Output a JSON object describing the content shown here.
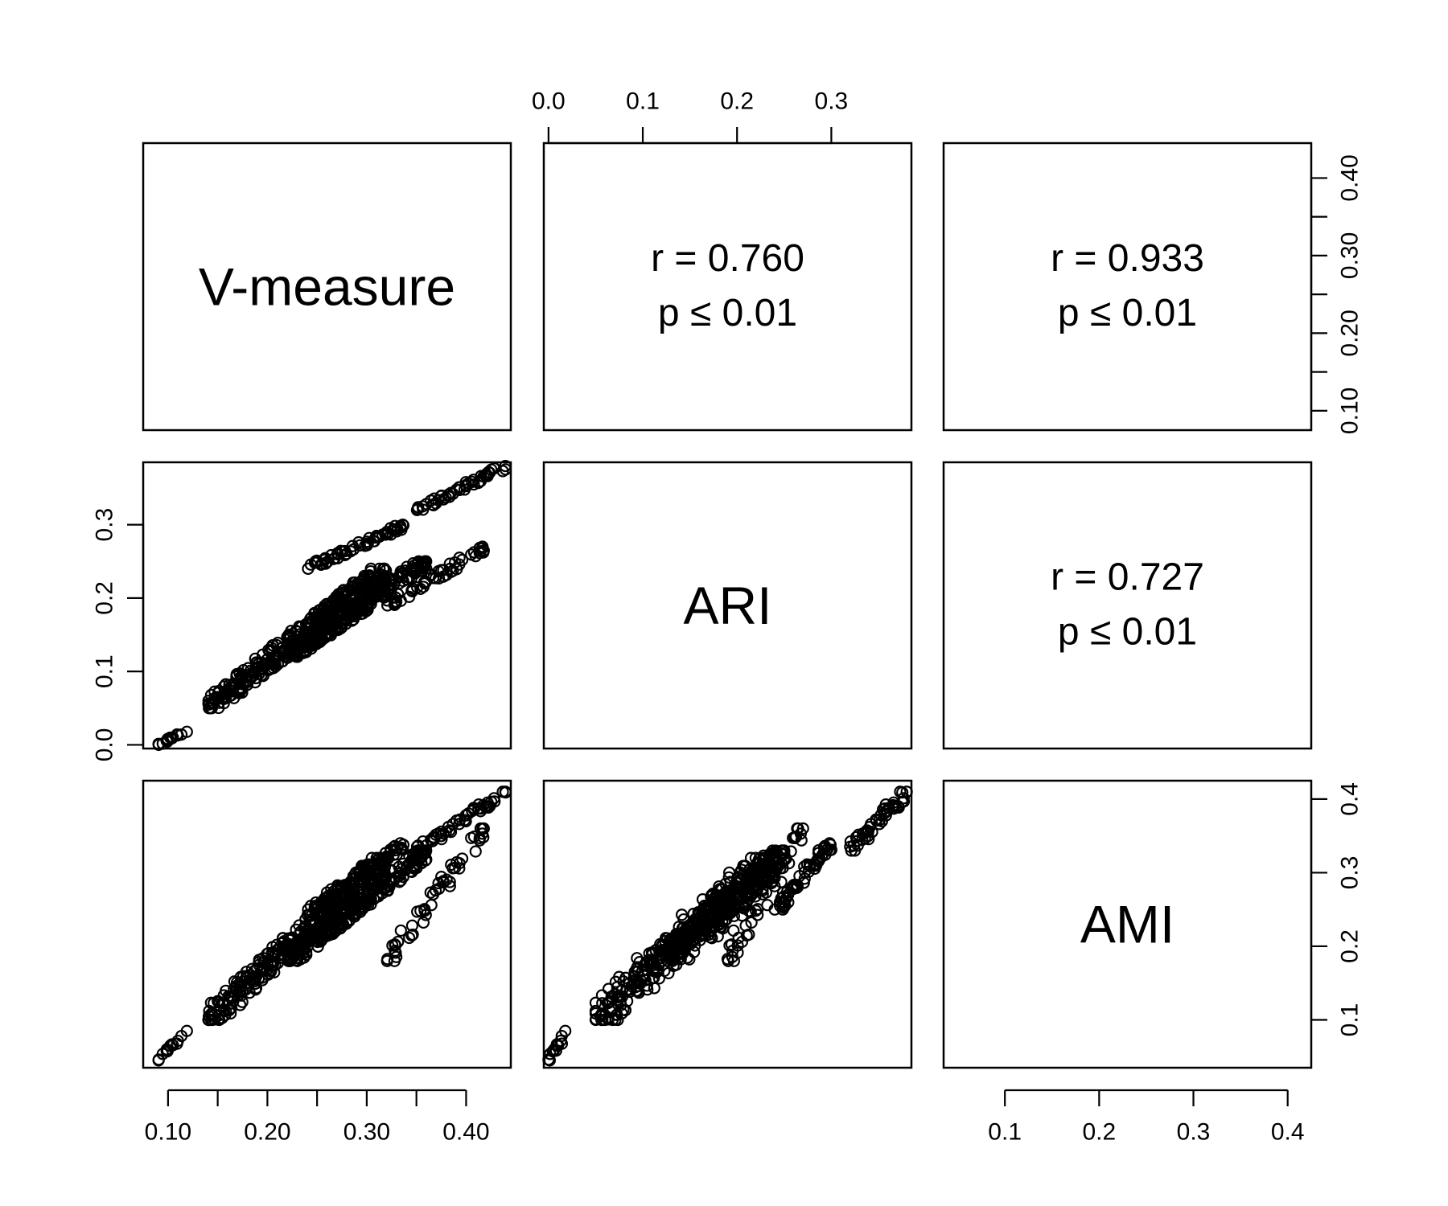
{
  "chart_data": {
    "type": "scatter-matrix",
    "variables": [
      "V-measure",
      "ARI",
      "AMI"
    ],
    "ranges": {
      "V-measure": [
        0.075,
        0.445
      ],
      "ARI": [
        -0.005,
        0.385
      ],
      "AMI": [
        0.035,
        0.425
      ]
    },
    "axes": {
      "bottom_col1": {
        "ticks": [
          0.1,
          0.15,
          0.2,
          0.25,
          0.3,
          0.35,
          0.4
        ],
        "labels": [
          "0.10",
          "0.20",
          "0.30",
          "0.40"
        ],
        "label_values": [
          0.1,
          0.2,
          0.3,
          0.4
        ]
      },
      "top_col2": {
        "ticks": [
          0.0,
          0.1,
          0.2,
          0.3
        ],
        "labels": [
          "0.0",
          "0.1",
          "0.2",
          "0.3"
        ]
      },
      "left_row2": {
        "ticks": [
          0.0,
          0.1,
          0.2,
          0.3
        ],
        "labels": [
          "0.0",
          "0.1",
          "0.2",
          "0.3"
        ]
      },
      "right_row1": {
        "ticks": [
          0.1,
          0.15,
          0.2,
          0.25,
          0.3,
          0.35,
          0.4
        ],
        "labels": [
          "0.10",
          "0.20",
          "0.30",
          "0.40"
        ],
        "label_values": [
          0.1,
          0.2,
          0.3,
          0.4
        ]
      },
      "bottom_col3": {
        "ticks": [
          0.1,
          0.2,
          0.3,
          0.4
        ],
        "labels": [
          "0.1",
          "0.2",
          "0.3",
          "0.4"
        ]
      },
      "right_row3": {
        "ticks": [
          0.1,
          0.2,
          0.3,
          0.4
        ],
        "labels": [
          "0.1",
          "0.2",
          "0.3",
          "0.4"
        ]
      }
    },
    "correlations": [
      {
        "pair": [
          "V-measure",
          "ARI"
        ],
        "r_text": "r = 0.760",
        "p_text": "p ≤ 0.01"
      },
      {
        "pair": [
          "V-measure",
          "AMI"
        ],
        "r_text": "r = 0.933",
        "p_text": "p ≤ 0.01"
      },
      {
        "pair": [
          "ARI",
          "AMI"
        ],
        "r_text": "r = 0.727",
        "p_text": "p ≤ 0.01"
      }
    ],
    "point_clusters": [
      {
        "v": [
          0.09,
          0.12
        ],
        "ari": [
          0.0,
          0.02
        ],
        "ami": [
          0.045,
          0.085
        ],
        "n": 14
      },
      {
        "v": [
          0.14,
          0.32
        ],
        "ari": [
          0.05,
          0.24
        ],
        "ami": [
          0.1,
          0.32
        ],
        "n": 320
      },
      {
        "v": [
          0.22,
          0.36
        ],
        "ari": [
          0.12,
          0.25
        ],
        "ami": [
          0.18,
          0.33
        ],
        "n": 260
      },
      {
        "v": [
          0.24,
          0.34
        ],
        "ari": [
          0.24,
          0.3
        ],
        "ami": [
          0.25,
          0.34
        ],
        "n": 60
      },
      {
        "v": [
          0.35,
          0.44
        ],
        "ari": [
          0.32,
          0.38
        ],
        "ami": [
          0.33,
          0.41
        ],
        "n": 50
      },
      {
        "v": [
          0.32,
          0.42
        ],
        "ari": [
          0.19,
          0.27
        ],
        "ami": [
          0.18,
          0.36
        ],
        "n": 50
      }
    ]
  }
}
